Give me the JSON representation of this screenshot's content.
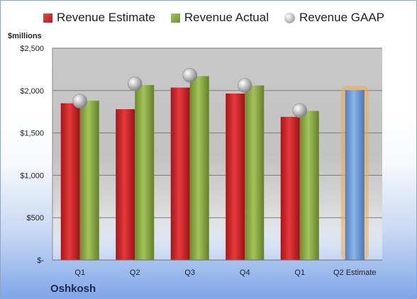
{
  "chart_data": {
    "type": "bar",
    "categories": [
      "Q1",
      "Q2",
      "Q3",
      "Q4",
      "Q1",
      "Q2 Estimate"
    ],
    "series": [
      {
        "name": "Revenue Estimate",
        "values": [
          1850,
          1780,
          2035,
          1965,
          1690,
          null
        ]
      },
      {
        "name": "Revenue Actual",
        "values": [
          1880,
          2065,
          2170,
          2060,
          1760,
          null
        ]
      },
      {
        "name": "Revenue GAAP",
        "values": [
          1875,
          2080,
          2180,
          2060,
          1765,
          null
        ]
      },
      {
        "name": "",
        "values": [
          null,
          null,
          null,
          null,
          null,
          2005
        ]
      }
    ],
    "ylabel": "$millions",
    "yticks": [
      "$-",
      "$500",
      "$1,000",
      "$1,500",
      "$2,000",
      "$2,500"
    ],
    "ylim": [
      0,
      2500
    ],
    "legend": "top",
    "grid": true,
    "annotation": "Oshkosh",
    "colors": {
      "estimate": "#c8282b",
      "actual": "#8aab43",
      "gaap": "#b0b0b0",
      "forecast": "#6d9cdb",
      "forecast_glow": "#f4a94a"
    }
  }
}
